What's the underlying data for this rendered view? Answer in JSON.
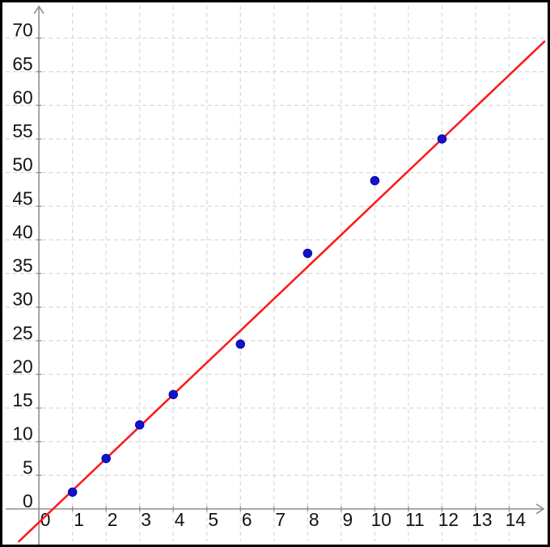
{
  "chart_data": {
    "type": "scatter",
    "title": "",
    "xlabel": "",
    "ylabel": "",
    "grid": true,
    "grid_style": "dashed",
    "legend": "none",
    "xlim": [
      -1,
      15.1
    ],
    "ylim": [
      -5,
      74.8
    ],
    "x_tick_labels": [
      "0",
      "1",
      "2",
      "3",
      "4",
      "5",
      "6",
      "7",
      "8",
      "9",
      "10",
      "11",
      "12",
      "13",
      "14"
    ],
    "y_tick_labels": [
      "0",
      "5",
      "10",
      "15",
      "20",
      "25",
      "30",
      "35",
      "40",
      "45",
      "50",
      "55",
      "60",
      "65",
      "70"
    ],
    "points": [
      {
        "x": 1,
        "y": 2.5
      },
      {
        "x": 2,
        "y": 7.5
      },
      {
        "x": 3,
        "y": 12.5
      },
      {
        "x": 4,
        "y": 17
      },
      {
        "x": 6,
        "y": 24.5
      },
      {
        "x": 8,
        "y": 38
      },
      {
        "x": 10,
        "y": 48.8
      },
      {
        "x": 12,
        "y": 55
      }
    ],
    "trend_line": {
      "type": "line-of-best-fit",
      "slope": 4.75,
      "intercept": -2
    },
    "colors": {
      "point_fill": "#1212cc",
      "point_stroke": "#0808a8",
      "trend_line": "#fb1b1b",
      "grid": "#d8d8d8",
      "axis": "#8f8f8f",
      "tick_label": "#141414",
      "background": "#ffffff",
      "frame": "#000000"
    }
  }
}
